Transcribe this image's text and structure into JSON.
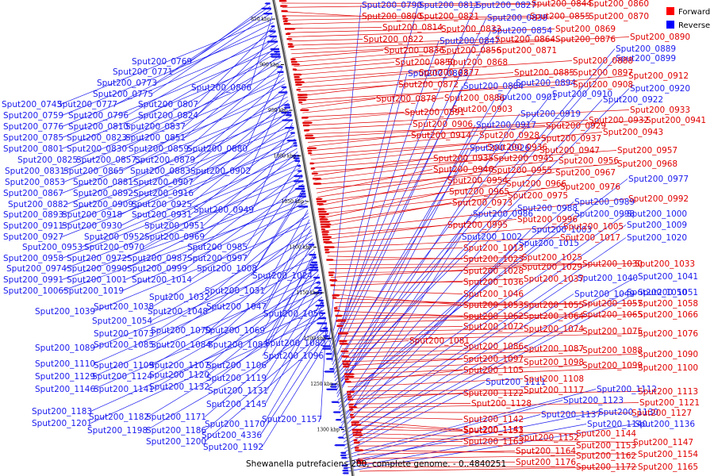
{
  "caption": "Shewanella putrefaciens 200, complete genome. - 0..4840251",
  "legend": {
    "forward_label": "Forward",
    "reverse_label": "Reverse",
    "forward_color": "#ff0000",
    "reverse_color": "#0000ff"
  },
  "colors": {
    "forward": "#e00000",
    "reverse": "#1a1aee"
  },
  "ticks": [
    "850 kbp",
    "900 kbp",
    "950 kbp",
    "1000 kbp",
    "1050 kbp",
    "1100 kbp",
    "1150 kbp",
    "1200 kbp",
    "1250 kbp",
    "1300 kbp"
  ],
  "reverse_labels": [
    "Sput200_0769",
    "Sput200_0771",
    "Sput200_0773",
    "Sput200_0775",
    "Sput200_0806",
    "Sput200_0743",
    "Sput200_0777",
    "Sput200_0807",
    "Sput200_0759",
    "Sput200_0796",
    "Sput200_0824",
    "Sput200_0776",
    "Sput200_0810",
    "Sput200_0837",
    "Sput200_0785",
    "Sput200_0823",
    "Sput200_0851",
    "Sput200_0801",
    "Sput200_0830",
    "Sput200_0859",
    "Sput200_0880",
    "Sput200_0825",
    "Sput200_0857",
    "Sput200_0879",
    "Sput200_0831",
    "Sput200_0865",
    "Sput200_0883",
    "Sput200_0902",
    "Sput200_0853",
    "Sput200_0881",
    "Sput200_0907",
    "Sput200_0867",
    "Sput200_0892",
    "Sput200_0916",
    "Sput200_0882",
    "Sput200_0909",
    "Sput200_0925",
    "Sput200_0949",
    "Sput200_0893",
    "Sput200_0918",
    "Sput200_0931",
    "Sput200_0911",
    "Sput200_0930",
    "Sput200_0951",
    "Sput200_0927",
    "Sput200_0952",
    "Sput200_0969",
    "Sput200_0953",
    "Sput200_0970",
    "Sput200_0985",
    "Sput200_0958",
    "Sput200_0972",
    "Sput200_0987",
    "Sput200_0997",
    "Sput200_0974",
    "Sput200_0990",
    "Sput200_0999",
    "Sput200_1008",
    "Sput200_1024",
    "Sput200_0991",
    "Sput200_1001",
    "Sput200_1014",
    "Sput200_1006",
    "Sput200_1019",
    "Sput200_1031",
    "Sput200_1032",
    "Sput200_1038",
    "Sput200_1047",
    "Sput200_1039",
    "Sput200_1048",
    "Sput200_1056",
    "Sput200_1054",
    "Sput200_1073",
    "Sput200_1070",
    "Sput200_1069",
    "Sput200_1085",
    "Sput200_1084",
    "Sput200_1083",
    "Sput200_1082",
    "Sput200_1089",
    "Sput200_1096",
    "Sput200_1110",
    "Sput200_1109",
    "Sput200_1107",
    "Sput200_1106",
    "Sput200_1129",
    "Sput200_1124",
    "Sput200_1120",
    "Sput200_1119",
    "Sput200_1146",
    "Sput200_1141",
    "Sput200_1132",
    "Sput200_1131",
    "Sput200_1145",
    "Sput200_1183",
    "Sput200_1182",
    "Sput200_1171",
    "Sput200_1201",
    "Sput200_1170",
    "Sput200_1157",
    "Sput200_1198",
    "Sput200_1186",
    "Sput200_4336",
    "Sput200_1200",
    "Sput200_1192",
    "Sput200_0790",
    "Sput200_0811",
    "Sput200_0827",
    "Sput200_0838",
    "Sput200_0854",
    "Sput200_0847",
    "Sput200_0863",
    "Sput200_0884",
    "Sput200_0894",
    "Sput200_0901",
    "Sput200_0910",
    "Sput200_0889",
    "Sput200_0899",
    "Sput200_0920",
    "Sput200_0922",
    "Sput200_0917",
    "Sput200_0919",
    "Sput200_0926",
    "Sput200_0977",
    "Sput200_0989",
    "Sput200_0998",
    "Sput200_0986",
    "Sput200_0988",
    "Sput200_1000",
    "Sput200_1003",
    "Sput200_1009",
    "Sput200_1002",
    "Sput200_1015",
    "Sput200_1020",
    "Sput200_1040",
    "Sput200_1041",
    "Sput200_1049",
    "Sput200_1050",
    "Sput200_1051",
    "Sput200_1111",
    "Sput200_1112",
    "Sput200_1123",
    "Sput200_1130",
    "Sput200_1137",
    "Sput200_1140",
    "Sput200_1136"
  ],
  "forward_labels": [
    "Sput200_0844",
    "Sput200_0860",
    "Sput200_0800",
    "Sput200_0821",
    "Sput200_0855",
    "Sput200_0870",
    "Sput200_0814",
    "Sput200_0833",
    "Sput200_0869",
    "Sput200_0822",
    "Sput200_0864",
    "Sput200_0876",
    "Sput200_0890",
    "Sput200_0836",
    "Sput200_0856",
    "Sput200_0871",
    "Sput200_0850",
    "Sput200_0868",
    "Sput200_0888",
    "Sput200_0877",
    "Sput200_0885",
    "Sput200_0897",
    "Sput200_0872",
    "Sput200_0908",
    "Sput200_0912",
    "Sput200_0878",
    "Sput200_0886",
    "Sput200_0891",
    "Sput200_0903",
    "Sput200_0933",
    "Sput200_0906",
    "Sput200_0929",
    "Sput200_0932",
    "Sput200_0941",
    "Sput200_0914",
    "Sput200_0928",
    "Sput200_0937",
    "Sput200_0943",
    "Sput200_0936",
    "Sput200_0947",
    "Sput200_0957",
    "Sput200_0935",
    "Sput200_0945",
    "Sput200_0956",
    "Sput200_0968",
    "Sput200_0946",
    "Sput200_0955",
    "Sput200_0967",
    "Sput200_0954",
    "Sput200_0966",
    "Sput200_0976",
    "Sput200_0965",
    "Sput200_0975",
    "Sput200_0973",
    "Sput200_0992",
    "Sput200_0996",
    "Sput200_0995",
    "Sput200_1005",
    "Sput200_1017",
    "Sput200_1013",
    "Sput200_1023",
    "Sput200_1025",
    "Sput200_1030",
    "Sput200_1033",
    "Sput200_1028",
    "Sput200_1029",
    "Sput200_1036",
    "Sput200_1037",
    "Sput200_1046",
    "Sput200_1053",
    "Sput200_1055",
    "Sput200_1057",
    "Sput200_1058",
    "Sput200_1062",
    "Sput200_1064",
    "Sput200_1065",
    "Sput200_1066",
    "Sput200_1072",
    "Sput200_1074",
    "Sput200_1075",
    "Sput200_1076",
    "Sput200_1081",
    "Sput200_1086",
    "Sput200_1087",
    "Sput200_1088",
    "Sput200_1090",
    "Sput200_1097",
    "Sput200_1098",
    "Sput200_1099",
    "Sput200_1100",
    "Sput200_1105",
    "Sput200_1108",
    "Sput200_1117",
    "Sput200_1113",
    "Sput200_1122",
    "Sput200_1128",
    "Sput200_1121",
    "Sput200_1127",
    "Sput200_1142",
    "Sput200_1143",
    "Sput200_1151",
    "Sput200_1144",
    "Sput200_1152",
    "Sput200_1147",
    "Sput200_1163",
    "Sput200_1153",
    "Sput200_1154",
    "Sput200_1164",
    "Sput200_1162",
    "Sput200_1176",
    "Sput200_1172",
    "Sput200_1165"
  ]
}
